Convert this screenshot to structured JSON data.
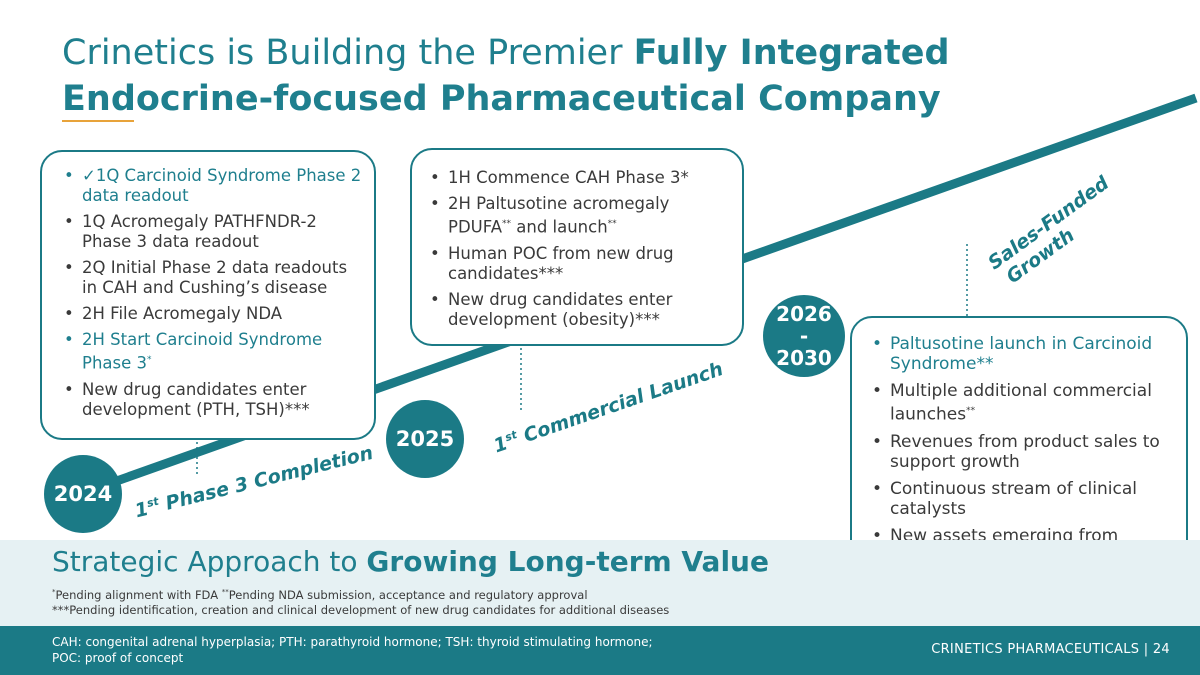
{
  "title": {
    "plain": "Crinetics is Building the Premier ",
    "bold_line1": "Fully Integrated",
    "bold_line2": "Endocrine-focused Pharmaceutical Company"
  },
  "milestones": [
    {
      "year": "2024",
      "items": [
        {
          "text": "✓1Q Carcinoid Syndrome Phase 2 data readout",
          "highlight": true
        },
        {
          "text": "1Q Acromegaly PATHFNDR-2 Phase 3 data readout",
          "highlight": false
        },
        {
          "text": "2Q Initial Phase 2 data readouts in CAH and Cushing’s disease",
          "highlight": false
        },
        {
          "text": "2H File Acromegaly NDA",
          "highlight": false
        },
        {
          "text": "2H Start Carcinoid Syndrome Phase 3",
          "sup": "*",
          "highlight": true
        },
        {
          "text": "New drug candidates enter development (PTH, TSH)***",
          "highlight": false
        }
      ],
      "label": "Phase 3 Completion",
      "label_prefix": "1",
      "label_sup": "st"
    },
    {
      "year": "2025",
      "items": [
        {
          "text": "1H Commence CAH Phase 3*"
        },
        {
          "text_a": "2H Paltusotine acromegaly PDUFA",
          "sup_a": "**",
          "text_b": " and launch",
          "sup_b": "**"
        },
        {
          "text": "Human POC from new drug candidates***"
        },
        {
          "text": "New drug candidates enter development (obesity)***"
        }
      ],
      "label": "Commercial Launch",
      "label_prefix": "1",
      "label_sup": "st"
    },
    {
      "year_top": "2026",
      "year_mid": "-",
      "year_bottom": "2030",
      "items": [
        {
          "text": "Paltusotine launch in Carcinoid Syndrome**",
          "highlight": true
        },
        {
          "text": "Multiple additional commercial launches",
          "sup": "**",
          "highlight": false
        },
        {
          "text": "Revenues from product sales to support growth",
          "highlight": false
        },
        {
          "text": "Continuous stream of clinical catalysts",
          "highlight": false
        },
        {
          "text": "New assets emerging from discovery into development",
          "highlight": false
        }
      ],
      "label_line1": "Sales-Funded",
      "label_line2": "Growth"
    }
  ],
  "strategic": {
    "plain": "Strategic Approach to ",
    "bold": "Growing Long-term Value"
  },
  "footnotes": {
    "line1_sup1": "*",
    "line1_a": "Pending alignment with FDA ",
    "line1_sup2": "**",
    "line1_b": "Pending NDA submission, acceptance and regulatory approval",
    "line2": "***Pending identification, creation and clinical development of new drug candidates for additional diseases"
  },
  "footer": {
    "abbreviations_line1": "CAH: congenital adrenal hyperplasia; PTH: parathyroid hormone; TSH: thyroid stimulating hormone;",
    "abbreviations_line2": "POC: proof of concept",
    "brand": "CRINETICS PHARMACEUTICALS  |  24"
  },
  "colors": {
    "teal": "#1b7a86",
    "title_teal": "#1f7f8e",
    "accent_orange": "#e8a33a",
    "band": "#e6f1f3"
  }
}
